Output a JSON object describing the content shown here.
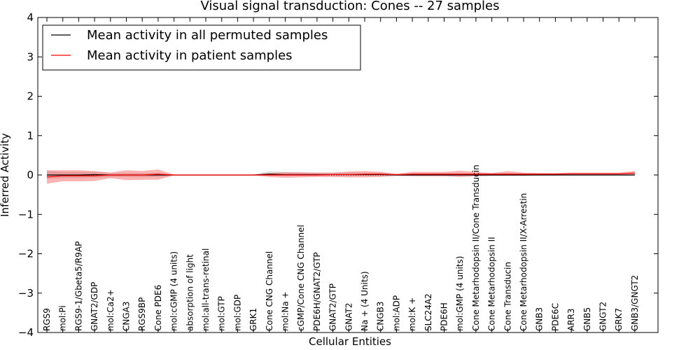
{
  "chart_data": {
    "type": "line",
    "title": "Visual signal transduction: Cones -- 27 samples",
    "xlabel": "Cellular Entities",
    "ylabel": "Inferred Activity",
    "ylim": [
      -4,
      4
    ],
    "yticks": [
      -4,
      -3,
      -2,
      -1,
      0,
      1,
      2,
      3,
      4
    ],
    "ytick_labels": [
      "−4",
      "−3",
      "−2",
      "−1",
      "0",
      "1",
      "2",
      "3",
      "4"
    ],
    "legend_position": "top-left",
    "categories": [
      "RGS9",
      "mol:Pi",
      "RGS9-1/Gbeta5/R9AP",
      "GNAT2/GDP",
      "mol:Ca2+",
      "CNGA3",
      "RGS9BP",
      "Cone PDE6",
      "mol:cGMP (4 units)",
      "absorption of light",
      "mol:all-trans-retinal",
      "mol:GTP",
      "mol:GDP",
      "GRK1",
      "Cone CNG Channel",
      "mol:Na +",
      "cGMP/Cone CNG Channel",
      "PDE6H/GNAT2/GTP",
      "GNAT2/GTP",
      "GNAT2",
      "Na + (4 Units)",
      "CNGB3",
      "mol:ADP",
      "mol:K +",
      "SLC24A2",
      "PDE6H",
      "mol:GMP (4 units)",
      "Cone Metarhodopsin II/Cone Transducin",
      "Cone Metarhodopsin II",
      "Cone Transducin",
      "Cone Metarhodopsin II/X-Arrestin",
      "GNB3",
      "PDE6C",
      "ARR3",
      "GNB5",
      "GNGT2",
      "GRK7",
      "GNB3/GNGT2"
    ],
    "series": [
      {
        "name": "Mean activity in all permuted samples",
        "color": "#000000",
        "values": [
          0.0,
          0.0,
          0.0,
          0.01,
          0.0,
          0.0,
          0.0,
          0.0,
          0.0,
          0.0,
          0.0,
          0.0,
          0.0,
          0.0,
          0.02,
          0.01,
          0.01,
          0.01,
          0.01,
          0.01,
          0.01,
          0.01,
          0.0,
          0.0,
          0.0,
          0.0,
          0.0,
          0.0,
          0.0,
          0.0,
          0.0,
          0.0,
          0.0,
          0.0,
          0.0,
          0.0,
          0.0,
          0.0
        ]
      },
      {
        "name": "Mean activity in patient samples",
        "color": "#ff0000",
        "values": [
          -0.05,
          -0.02,
          -0.02,
          -0.02,
          0.0,
          0.0,
          0.0,
          0.02,
          0.0,
          0.0,
          0.0,
          0.0,
          0.0,
          0.0,
          0.0,
          0.0,
          0.0,
          0.0,
          0.01,
          0.01,
          0.02,
          0.02,
          0.01,
          0.02,
          0.02,
          0.02,
          0.02,
          0.02,
          0.02,
          0.02,
          0.02,
          0.02,
          0.02,
          0.03,
          0.03,
          0.03,
          0.03,
          0.05
        ]
      }
    ],
    "bands": [
      {
        "name": "permuted-spread",
        "color": "#bbbbbb",
        "lower": [
          -0.1,
          -0.08,
          -0.08,
          -0.07,
          -0.05,
          -0.05,
          -0.05,
          -0.05,
          -0.01,
          -0.01,
          -0.01,
          -0.01,
          -0.01,
          -0.01,
          -0.02,
          -0.02,
          -0.02,
          -0.02,
          -0.02,
          -0.02,
          -0.02,
          -0.02,
          -0.01,
          -0.02,
          -0.02,
          -0.02,
          -0.02,
          -0.02,
          -0.02,
          -0.02,
          -0.02,
          -0.02,
          -0.02,
          -0.02,
          -0.02,
          -0.02,
          -0.02,
          -0.02
        ],
        "upper": [
          0.1,
          0.08,
          0.08,
          0.08,
          0.05,
          0.05,
          0.05,
          0.05,
          0.01,
          0.01,
          0.01,
          0.01,
          0.01,
          0.01,
          0.1,
          0.08,
          0.06,
          0.06,
          0.06,
          0.06,
          0.06,
          0.06,
          0.01,
          0.05,
          0.05,
          0.05,
          0.05,
          0.05,
          0.05,
          0.05,
          0.05,
          0.05,
          0.05,
          0.05,
          0.05,
          0.05,
          0.05,
          0.05
        ]
      },
      {
        "name": "patient-spread",
        "color": "#ff0000",
        "lower": [
          -0.22,
          -0.16,
          -0.16,
          -0.15,
          -0.08,
          -0.13,
          -0.12,
          -0.12,
          -0.01,
          -0.01,
          -0.01,
          -0.01,
          -0.01,
          -0.01,
          -0.05,
          -0.07,
          -0.06,
          -0.05,
          -0.05,
          -0.06,
          -0.06,
          -0.05,
          -0.02,
          -0.03,
          -0.03,
          -0.03,
          -0.05,
          -0.03,
          -0.02,
          -0.02,
          -0.02,
          0.0,
          0.0,
          0.0,
          0.0,
          0.0,
          0.0,
          0.0
        ],
        "upper": [
          0.12,
          0.12,
          0.12,
          0.1,
          0.06,
          0.12,
          0.1,
          0.14,
          0.01,
          0.01,
          0.01,
          0.01,
          0.01,
          0.01,
          0.05,
          0.07,
          0.07,
          0.06,
          0.06,
          0.09,
          0.1,
          0.08,
          0.03,
          0.08,
          0.08,
          0.08,
          0.11,
          0.08,
          0.05,
          0.1,
          0.06,
          0.05,
          0.05,
          0.06,
          0.06,
          0.06,
          0.06,
          0.1
        ]
      }
    ]
  }
}
